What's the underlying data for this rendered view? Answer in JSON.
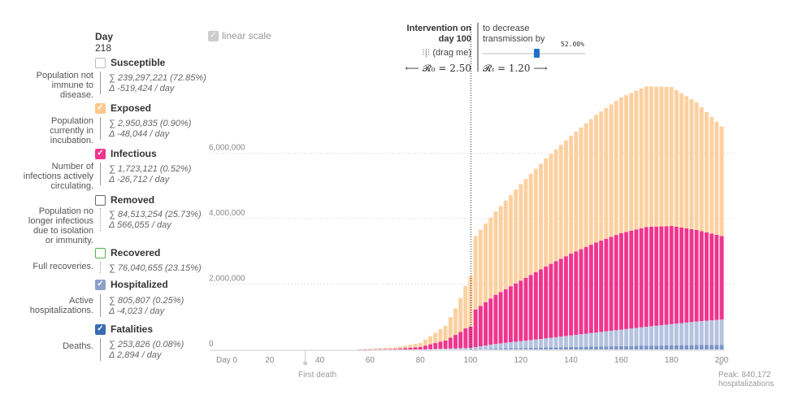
{
  "day_label": "Day",
  "day_value": "218",
  "linear_scale_label": "linear scale",
  "intervention": {
    "title_line1": "Intervention on",
    "title_line2": "day 100",
    "drag_label": "(drag me)",
    "decrease_line1": "to decrease",
    "decrease_line2": "transmission by",
    "percent_label": "52.00%",
    "percent": 0.52,
    "r0_text": "⟵ 𝓡₀ = 2.50",
    "rt_text": "𝓡ₜ = 1.20 ⟶"
  },
  "categories": [
    {
      "key": "susceptible",
      "label": "Susceptible",
      "checked": false,
      "color": "#dddddd",
      "desc_lines": [
        "Population not",
        "immune to",
        "disease."
      ],
      "sum": "∑ 239,297,221 (72.85%)",
      "delta": "Δ -519,424 / day"
    },
    {
      "key": "exposed",
      "label": "Exposed",
      "checked": true,
      "color": "#fdc88b",
      "desc_lines": [
        "Population",
        "currently in",
        "incubation."
      ],
      "sum": "∑ 2,950,835 (0.90%)",
      "delta": "Δ -48,044 / day"
    },
    {
      "key": "infectious",
      "label": "Infectious",
      "checked": true,
      "color": "#f0358e",
      "desc_lines": [
        "Number of",
        "infections actively",
        "circulating."
      ],
      "sum": "∑ 1,723,121 (0.52%)",
      "delta": "Δ -26,712 / day"
    },
    {
      "key": "removed",
      "label": "Removed",
      "checked": false,
      "color": "#666666",
      "desc_lines": [
        "Population no",
        "longer infectious",
        "due to isolation",
        "or immunity."
      ],
      "sum": "∑ 84,513,254 (25.73%)",
      "delta": "Δ 566,055 / day"
    },
    {
      "key": "recovered",
      "label": "Recovered",
      "checked": false,
      "color": "#4daf4a",
      "desc_lines": [
        "Full recoveries."
      ],
      "sum": "∑ 76,040,655 (23.15%)",
      "delta": ""
    },
    {
      "key": "hospitalized",
      "label": "Hospitalized",
      "checked": true,
      "color": "#8da0cb",
      "desc_lines": [
        "Active",
        "hospitalizations."
      ],
      "sum": "∑ 805,807 (0.25%)",
      "delta": "Δ -4,023 / day"
    },
    {
      "key": "fatalities",
      "label": "Fatalities",
      "checked": true,
      "color": "#386cb0",
      "desc_lines": [
        "Deaths."
      ],
      "sum": "∑ 253,826 (0.08%)",
      "delta": "Δ 2,894 / day"
    }
  ],
  "chart_data": {
    "type": "bar",
    "stacked": true,
    "x_start": 0,
    "x_end": 200,
    "x_step": 2,
    "xlim": [
      0,
      200
    ],
    "ylim": [
      0,
      8000000
    ],
    "x_ticks": [
      0,
      20,
      40,
      60,
      80,
      100,
      120,
      140,
      160,
      180,
      200
    ],
    "x_tick_labels": [
      "Day 0",
      "20",
      "40",
      "60",
      "80",
      "100",
      "120",
      "140",
      "160",
      "180",
      "200"
    ],
    "y_ticks": [
      0,
      2000000,
      4000000,
      6000000
    ],
    "y_tick_labels": [
      "0",
      "2,000,000",
      "4,000,000",
      "6,000,000"
    ],
    "intervention_day": 100,
    "annotations": [
      {
        "x": 40,
        "text": "First death"
      },
      {
        "x": 200,
        "lines": [
          "Peak: 840,172",
          "hospitalizations"
        ]
      }
    ],
    "series": [
      {
        "name": "Fatalities",
        "color": "#7b95c8",
        "points": [
          [
            100,
            0
          ],
          [
            110,
            30000
          ],
          [
            130,
            60000
          ],
          [
            150,
            90000
          ],
          [
            170,
            115000
          ],
          [
            190,
            135000
          ],
          [
            200,
            145000
          ]
        ]
      },
      {
        "name": "Hospitalized",
        "color": "#b5c3e0",
        "points": [
          [
            80,
            0
          ],
          [
            100,
            50000
          ],
          [
            110,
            140000
          ],
          [
            130,
            280000
          ],
          [
            150,
            430000
          ],
          [
            170,
            580000
          ],
          [
            190,
            720000
          ],
          [
            200,
            770000
          ]
        ]
      },
      {
        "name": "Infectious",
        "color": "#f0358e",
        "points": [
          [
            55,
            0
          ],
          [
            70,
            20000
          ],
          [
            80,
            80000
          ],
          [
            90,
            250000
          ],
          [
            95,
            450000
          ],
          [
            98,
            600000
          ],
          [
            100,
            650000
          ],
          [
            102,
            1150000
          ],
          [
            110,
            1500000
          ],
          [
            120,
            1850000
          ],
          [
            130,
            2200000
          ],
          [
            140,
            2500000
          ],
          [
            150,
            2750000
          ],
          [
            160,
            2950000
          ],
          [
            170,
            3050000
          ],
          [
            180,
            3000000
          ],
          [
            190,
            2800000
          ],
          [
            200,
            2550000
          ]
        ]
      },
      {
        "name": "Exposed",
        "color": "#fdd0a0",
        "points": [
          [
            55,
            0
          ],
          [
            70,
            40000
          ],
          [
            80,
            120000
          ],
          [
            90,
            450000
          ],
          [
            95,
            900000
          ],
          [
            98,
            1300000
          ],
          [
            100,
            1550000
          ],
          [
            102,
            2250000
          ],
          [
            110,
            2550000
          ],
          [
            120,
            2950000
          ],
          [
            130,
            3300000
          ],
          [
            140,
            3600000
          ],
          [
            150,
            3900000
          ],
          [
            160,
            4150000
          ],
          [
            170,
            4300000
          ],
          [
            180,
            4250000
          ],
          [
            190,
            3900000
          ],
          [
            200,
            3350000
          ]
        ]
      }
    ]
  }
}
